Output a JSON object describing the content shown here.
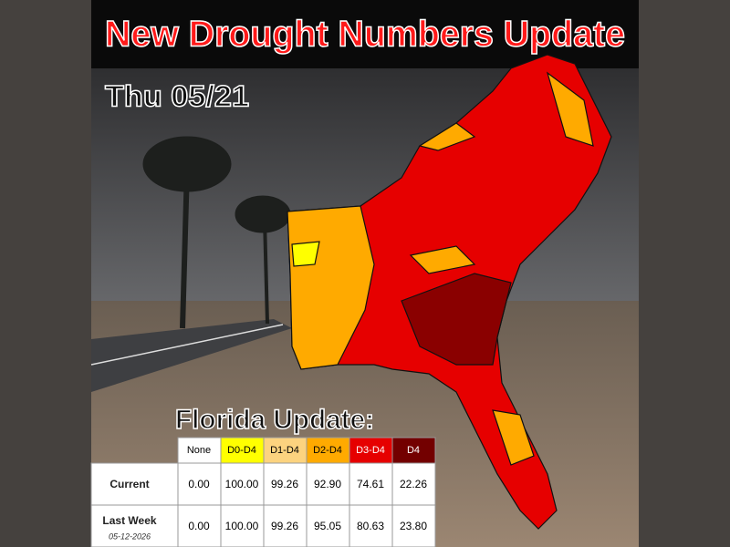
{
  "header": {
    "title": "New Drought Numbers Update",
    "date": "Thu 05/21"
  },
  "table": {
    "title": "Florida Update:",
    "columns": [
      "None",
      "D0-D4",
      "D1-D4",
      "D2-D4",
      "D3-D4",
      "D4"
    ],
    "rows": [
      {
        "label": "Current",
        "values": [
          "0.00",
          "100.00",
          "99.26",
          "92.90",
          "74.61",
          "22.26"
        ]
      },
      {
        "label": "Last Week",
        "sublabel": "05-12-2026",
        "values": [
          "0.00",
          "100.00",
          "99.26",
          "95.05",
          "80.63",
          "23.80"
        ]
      }
    ]
  }
}
